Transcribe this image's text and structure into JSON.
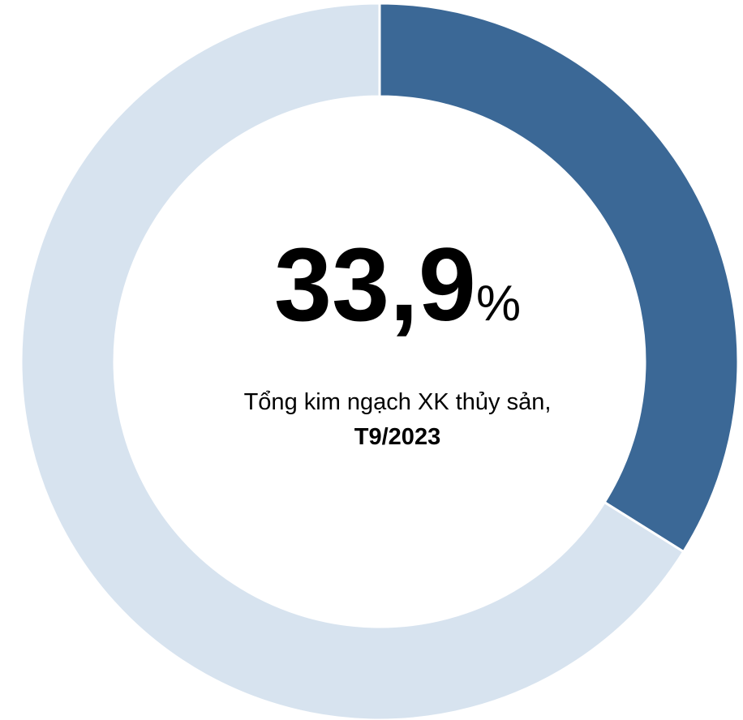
{
  "chart_data": {
    "type": "pie",
    "categories": [
      null,
      null
    ],
    "values": [
      33.9,
      66.1
    ],
    "value_labels": [
      "33,9%",
      null
    ],
    "colors": [
      "#3b6896",
      "#d7e3ef"
    ],
    "annotations": [
      "Tổng kim ngạch XK thủy sản,",
      "T9/2023"
    ]
  }
}
